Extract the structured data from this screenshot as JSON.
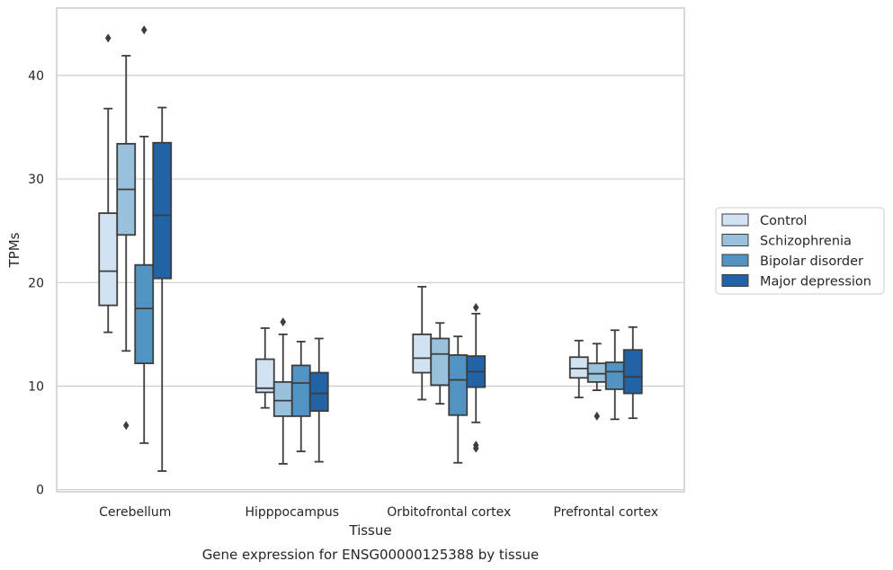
{
  "chart_data": {
    "type": "boxplot",
    "title": "Gene expression for ENSG00000125388 by tissue",
    "xlabel": "Tissue",
    "ylabel": "TPMs",
    "ylim": [
      -0.2,
      46.5
    ],
    "yticks": [
      0,
      10,
      20,
      30,
      40
    ],
    "grid": "horizontal",
    "legend_position": "right",
    "categories": [
      "Cerebellum",
      "Hipppocampus",
      "Orbitofrontal cortex",
      "Prefrontal cortex"
    ],
    "series": [
      {
        "name": "Control",
        "color": "#d1e2f2",
        "boxes": [
          {
            "whislo": 15.2,
            "q1": 17.8,
            "med": 21.1,
            "q3": 26.7,
            "whishi": 36.8,
            "fliers": [
              43.6
            ]
          },
          {
            "whislo": 7.9,
            "q1": 9.4,
            "med": 9.8,
            "q3": 12.6,
            "whishi": 15.6,
            "fliers": []
          },
          {
            "whislo": 8.7,
            "q1": 11.3,
            "med": 12.7,
            "q3": 15.0,
            "whishi": 19.6,
            "fliers": []
          },
          {
            "whislo": 8.9,
            "q1": 10.8,
            "med": 11.7,
            "q3": 12.8,
            "whishi": 14.4,
            "fliers": []
          }
        ]
      },
      {
        "name": "Schizophrenia",
        "color": "#9ac1db",
        "boxes": [
          {
            "whislo": 13.4,
            "q1": 24.6,
            "med": 29.0,
            "q3": 33.4,
            "whishi": 41.9,
            "fliers": [
              6.2
            ]
          },
          {
            "whislo": 2.5,
            "q1": 7.1,
            "med": 8.6,
            "q3": 10.4,
            "whishi": 15.0,
            "fliers": [
              16.2
            ]
          },
          {
            "whislo": 8.3,
            "q1": 10.1,
            "med": 13.1,
            "q3": 14.6,
            "whishi": 16.1,
            "fliers": []
          },
          {
            "whislo": 9.6,
            "q1": 10.4,
            "med": 11.2,
            "q3": 12.2,
            "whishi": 14.1,
            "fliers": [
              7.1
            ]
          }
        ]
      },
      {
        "name": "Bipolar disorder",
        "color": "#5194c3",
        "boxes": [
          {
            "whislo": 4.5,
            "q1": 12.2,
            "med": 17.5,
            "q3": 21.7,
            "whishi": 34.1,
            "fliers": [
              44.4
            ]
          },
          {
            "whislo": 3.7,
            "q1": 7.1,
            "med": 10.3,
            "q3": 12.0,
            "whishi": 14.3,
            "fliers": []
          },
          {
            "whislo": 2.6,
            "q1": 7.2,
            "med": 10.6,
            "q3": 13.0,
            "whishi": 14.8,
            "fliers": []
          },
          {
            "whislo": 6.8,
            "q1": 9.7,
            "med": 11.4,
            "q3": 12.3,
            "whishi": 15.4,
            "fliers": []
          }
        ]
      },
      {
        "name": "Major depression",
        "color": "#2263a6",
        "boxes": [
          {
            "whislo": 1.8,
            "q1": 20.4,
            "med": 26.5,
            "q3": 33.5,
            "whishi": 36.9,
            "fliers": []
          },
          {
            "whislo": 2.7,
            "q1": 7.6,
            "med": 9.3,
            "q3": 11.3,
            "whishi": 14.6,
            "fliers": []
          },
          {
            "whislo": 6.5,
            "q1": 9.9,
            "med": 11.4,
            "q3": 12.9,
            "whishi": 17.0,
            "fliers": [
              17.6,
              4.3,
              4.0
            ]
          },
          {
            "whislo": 6.9,
            "q1": 9.3,
            "med": 10.9,
            "q3": 13.5,
            "whishi": 15.7,
            "fliers": []
          }
        ]
      }
    ]
  }
}
